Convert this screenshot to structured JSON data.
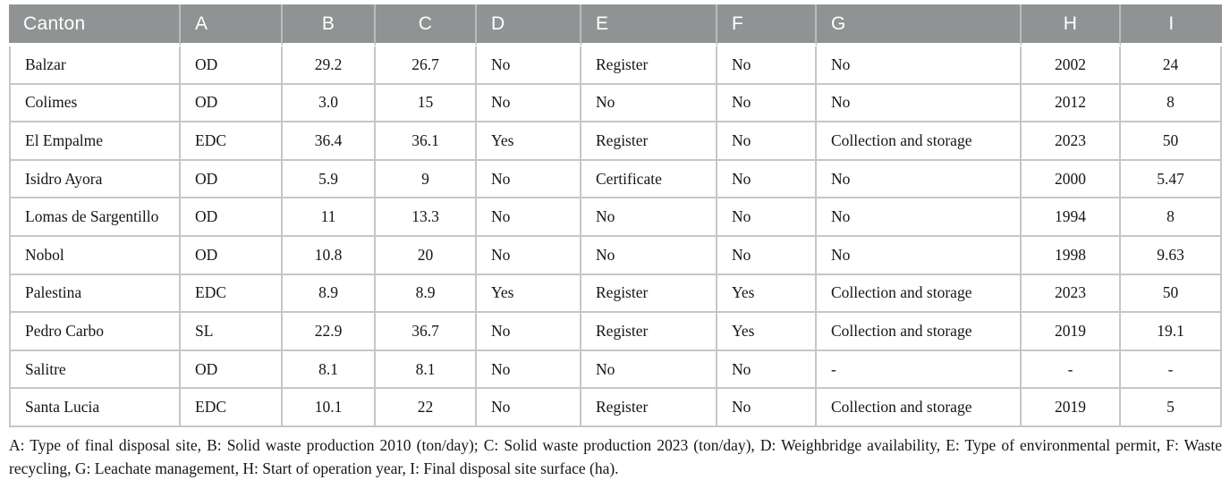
{
  "table": {
    "columns": [
      "Canton",
      "A",
      "B",
      "C",
      "D",
      "E",
      "F",
      "G",
      "H",
      "I"
    ],
    "rows": [
      [
        "Balzar",
        "OD",
        "29.2",
        "26.7",
        "No",
        "Register",
        "No",
        "No",
        "2002",
        "24"
      ],
      [
        "Colimes",
        "OD",
        "3.0",
        "15",
        "No",
        "No",
        "No",
        "No",
        "2012",
        "8"
      ],
      [
        "El Empalme",
        "EDC",
        "36.4",
        "36.1",
        "Yes",
        "Register",
        "No",
        "Collection and storage",
        "2023",
        "50"
      ],
      [
        "Isidro Ayora",
        "OD",
        "5.9",
        "9",
        "No",
        "Certificate",
        "No",
        "No",
        "2000",
        "5.47"
      ],
      [
        "Lomas de Sargentillo",
        "OD",
        "11",
        "13.3",
        "No",
        "No",
        "No",
        "No",
        "1994",
        "8"
      ],
      [
        "Nobol",
        "OD",
        "10.8",
        "20",
        "No",
        "No",
        "No",
        "No",
        "1998",
        "9.63"
      ],
      [
        "Palestina",
        "EDC",
        "8.9",
        "8.9",
        "Yes",
        "Register",
        "Yes",
        "Collection and storage",
        "2023",
        "50"
      ],
      [
        "Pedro Carbo",
        "SL",
        "22.9",
        "36.7",
        "No",
        "Register",
        "Yes",
        "Collection and storage",
        "2019",
        "19.1"
      ],
      [
        "Salitre",
        "OD",
        "8.1",
        "8.1",
        "No",
        "No",
        "No",
        "-",
        "-",
        "-"
      ],
      [
        "Santa Lucia",
        "EDC",
        "10.1",
        "22",
        "No",
        "Register",
        "No",
        "Collection and storage",
        "2019",
        "5"
      ]
    ]
  },
  "footnote": {
    "line1": "A: Type of final disposal site, B: Solid waste production 2010 (ton/day); C: Solid waste production 2023 (ton/day), D: Weighbridge availability, E: Type of environmental permit, F: Waste",
    "line2": "recycling, G: Leachate management, H: Start of operation year, I: Final disposal site surface (ha)."
  },
  "colors": {
    "header_bg": "#8f9394",
    "header_text": "#ffffff",
    "header_divider": "#b9bcbd",
    "cell_border": "#c5c7c7",
    "body_text": "#161616"
  }
}
